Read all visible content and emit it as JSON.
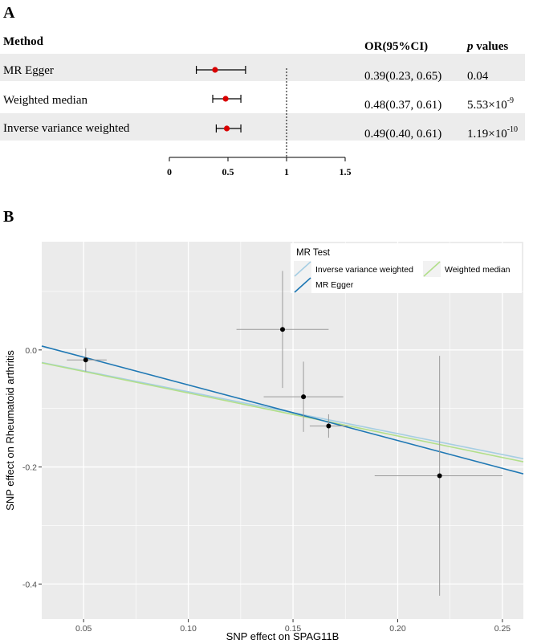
{
  "colors": {
    "panel_bg": "#ebebeb",
    "grid": "#ffffff",
    "stripe": "#ececec",
    "point_red": "#d90000",
    "ivw": "#a6cee3",
    "egger": "#1f78b4",
    "wmedian": "#b2df8a"
  },
  "chart_data": [
    {
      "type": "forest",
      "panel_label": "A",
      "headers": {
        "method": "Method",
        "or": "OR(95%CI)",
        "p_italic": "p",
        "p_rest": " values"
      },
      "rows": [
        {
          "method": "MR Egger",
          "or": 0.39,
          "lo": 0.23,
          "hi": 0.65,
          "or_text": "0.39(0.23, 0.65)",
          "p_mant": "0.04",
          "p_exp": ""
        },
        {
          "method": "Weighted median",
          "or": 0.48,
          "lo": 0.37,
          "hi": 0.61,
          "or_text": "0.48(0.37, 0.61)",
          "p_mant": "5.53×10",
          "p_exp": "-9"
        },
        {
          "method": "Inverse variance weighted",
          "or": 0.49,
          "lo": 0.4,
          "hi": 0.61,
          "or_text": "0.49(0.40, 0.61)",
          "p_mant": "1.19×10",
          "p_exp": "-10"
        }
      ],
      "xlim": [
        0,
        1.5
      ],
      "ticks": [
        0,
        0.5,
        1,
        1.5
      ],
      "tick_labels": [
        "0",
        "0.5",
        "1",
        "1.5"
      ],
      "reference_line": 1
    },
    {
      "type": "scatter",
      "panel_label": "B",
      "xlabel": "SNP effect on SPAG11B",
      "ylabel": "SNP effect on Rheumatoid arthritis",
      "xlim": [
        0.03,
        0.26
      ],
      "ylim": [
        -0.46,
        0.185
      ],
      "xticks": [
        0.05,
        0.1,
        0.15,
        0.2,
        0.25
      ],
      "xtick_labels": [
        "0.05",
        "0.10",
        "0.15",
        "0.20",
        "0.25"
      ],
      "yticks": [
        0.0,
        -0.2,
        -0.4
      ],
      "ytick_labels": [
        "0.0",
        "-0.2",
        "-0.4"
      ],
      "points": [
        {
          "x": 0.051,
          "y": -0.017,
          "xlo": 0.042,
          "xhi": 0.061,
          "ylo": -0.037,
          "yhi": 0.003
        },
        {
          "x": 0.145,
          "y": 0.035,
          "xlo": 0.123,
          "xhi": 0.167,
          "ylo": -0.065,
          "yhi": 0.135
        },
        {
          "x": 0.155,
          "y": -0.08,
          "xlo": 0.136,
          "xhi": 0.174,
          "ylo": -0.14,
          "yhi": -0.02
        },
        {
          "x": 0.167,
          "y": -0.13,
          "xlo": 0.158,
          "xhi": 0.176,
          "ylo": -0.15,
          "yhi": -0.11
        },
        {
          "x": 0.22,
          "y": -0.215,
          "xlo": 0.189,
          "xhi": 0.25,
          "ylo": -0.42,
          "yhi": -0.01
        }
      ],
      "lines": [
        {
          "name": "Inverse variance weighted",
          "intercept": 0,
          "slope": -0.715,
          "color": "#a6cee3"
        },
        {
          "name": "Weighted median",
          "intercept": 0,
          "slope": -0.735,
          "color": "#b2df8a"
        },
        {
          "name": "MR Egger",
          "intercept": 0.0352,
          "slope": -0.95,
          "color": "#1f78b4"
        }
      ],
      "legend": {
        "title": "MR Test",
        "placement": "top-right",
        "entries": [
          "Inverse variance weighted",
          "Weighted median",
          "MR Egger"
        ]
      }
    }
  ]
}
